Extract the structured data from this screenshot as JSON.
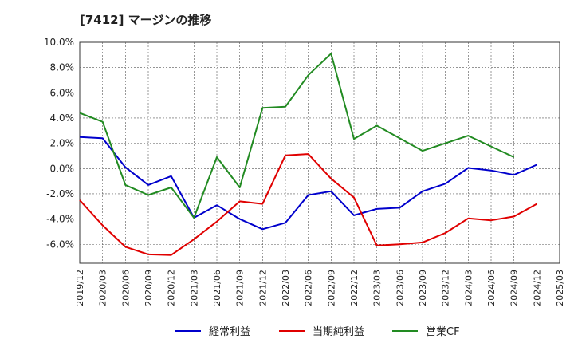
{
  "title": "[7412]  マージンの推移",
  "chart_data": {
    "type": "line",
    "categories": [
      "2019/12",
      "2020/03",
      "2020/06",
      "2020/09",
      "2020/12",
      "2021/03",
      "2021/06",
      "2021/09",
      "2021/12",
      "2022/03",
      "2022/06",
      "2022/09",
      "2022/12",
      "2023/03",
      "2023/06",
      "2023/09",
      "2023/12",
      "2024/03",
      "2024/06",
      "2024/09",
      "2024/12",
      "2025/03"
    ],
    "ylim": [
      -7.5,
      10.0
    ],
    "yticks": [
      10.0,
      8.0,
      6.0,
      4.0,
      2.0,
      0.0,
      -2.0,
      -4.0,
      -6.0
    ],
    "ytick_labels": [
      "10.0%",
      "8.0%",
      "6.0%",
      "4.0%",
      "2.0%",
      "0.0%",
      "-2.0%",
      "-4.0%",
      "-6.0%"
    ],
    "grid": true,
    "legend_position": "bottom",
    "series": [
      {
        "name": "経常利益",
        "color": "#0000cc",
        "values": [
          2.5,
          2.4,
          0.1,
          -1.3,
          -0.6,
          -3.9,
          -2.9,
          -4.0,
          -4.8,
          -4.3,
          -2.1,
          -1.8,
          -3.7,
          -3.2,
          -3.1,
          -1.8,
          -1.2,
          0.05,
          -0.15,
          -0.5,
          0.3,
          null
        ]
      },
      {
        "name": "当期純利益",
        "color": "#e00000",
        "values": [
          -2.5,
          -4.5,
          -6.2,
          -6.8,
          -6.85,
          -5.6,
          -4.2,
          -2.6,
          -2.8,
          1.05,
          1.15,
          -0.8,
          -2.3,
          -6.1,
          -6.0,
          -5.85,
          -5.1,
          -3.95,
          -4.1,
          -3.8,
          -2.8,
          null
        ]
      },
      {
        "name": "営業CF",
        "color": "#228b22",
        "values": [
          4.4,
          3.7,
          -1.3,
          -2.1,
          -1.5,
          -3.9,
          0.9,
          -1.5,
          4.8,
          4.9,
          7.4,
          9.1,
          2.35,
          3.4,
          2.4,
          1.4,
          2.0,
          2.6,
          1.75,
          0.9,
          null,
          null
        ]
      }
    ]
  }
}
